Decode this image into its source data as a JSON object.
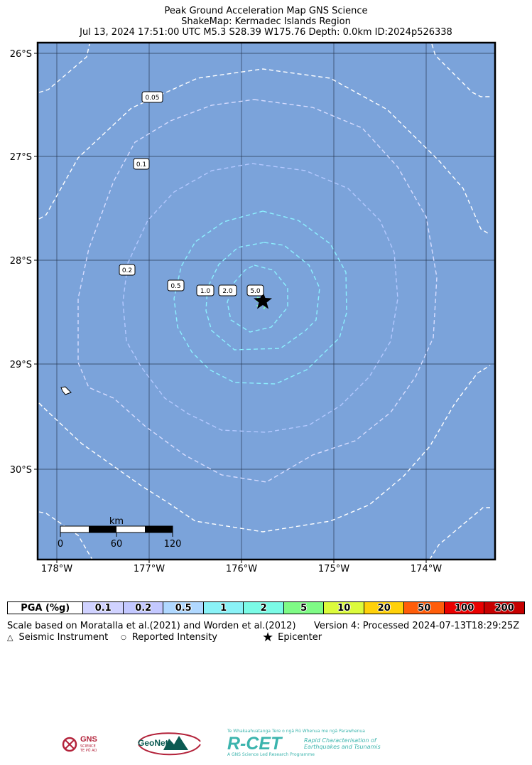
{
  "header": {
    "line1": "Peak Ground Acceleration Map GNS Science",
    "line2": "ShakeMap: Kermadec Islands Region",
    "line3": "Jul 13, 2024 17:51:00 UTC M5.3 S28.39 W175.76 Depth: 0.0km ID:2024p526338"
  },
  "map": {
    "lat_labels": [
      "26°S",
      "27°S",
      "28°S",
      "29°S",
      "30°S"
    ],
    "lon_labels": [
      "178°W",
      "177°W",
      "176°W",
      "175°W",
      "174°W"
    ],
    "contour_labels": [
      "0.05",
      "0.1",
      "0.2",
      "0.5",
      "1.0",
      "2.0",
      "5.0"
    ],
    "scale_bar": {
      "unit": "km",
      "ticks": [
        "0",
        "60",
        "120"
      ]
    },
    "ocean_color": "#7ba3da",
    "contour_colors": {
      "0.05": "#ffffff",
      "0.1": "#ffffff",
      "0.2": "#d6dcff",
      "0.5": "#b3c8ff",
      "1.0": "#8cf0ff",
      "2.0": "#8cf0ff",
      "5.0": "#80ffb0"
    }
  },
  "legend": {
    "header": "PGA (%g)",
    "cells": [
      {
        "label": "0.1",
        "color": "#d0d2ff"
      },
      {
        "label": "0.2",
        "color": "#c3c8ff"
      },
      {
        "label": "0.5",
        "color": "#b0d8ff"
      },
      {
        "label": "1",
        "color": "#8af2f7"
      },
      {
        "label": "2",
        "color": "#7bfbe6"
      },
      {
        "label": "5",
        "color": "#7ffb86"
      },
      {
        "label": "10",
        "color": "#dcfb3c"
      },
      {
        "label": "20",
        "color": "#ffd10a"
      },
      {
        "label": "50",
        "color": "#ff5d0a"
      },
      {
        "label": "100",
        "color": "#e90000"
      },
      {
        "label": "200",
        "color": "#c60000"
      }
    ]
  },
  "footer": {
    "scale_note": "Scale based on Moratalla et al.(2021) and Worden et al.(2012)",
    "version_note": "Version 4: Processed 2024-07-13T18:29:25Z",
    "key_instrument": "Seismic Instrument",
    "key_reported": "Reported Intensity",
    "key_epicenter": "Epicenter"
  },
  "logos": {
    "gns": "GNS",
    "gns_sub1": "SCIENCE",
    "gns_sub2": "TE PŪ AO",
    "geonet": "GeoNet",
    "rcet_title": "R-CET",
    "rcet_top": "Te Whakaahuatanga Tere o ngā Rū Whenua me ngā Parawhenua",
    "rcet_line1": "Rapid Characterisation of",
    "rcet_line2": "Earthquakes and Tsunamis",
    "rcet_bottom": "A GNS Science Led Research Programme"
  }
}
